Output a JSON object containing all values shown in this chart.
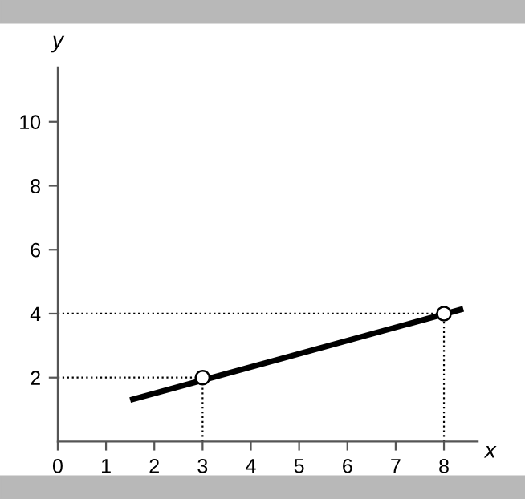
{
  "chart_data": {
    "type": "line",
    "xlabel": "x",
    "ylabel": "y",
    "series": [
      {
        "color": "#000000",
        "x": [
          1.5,
          8.4
        ],
        "values": [
          1.3,
          4.15
        ],
        "marker": "none"
      },
      {
        "type": "scatter",
        "color": "#000000",
        "x": [
          3,
          8
        ],
        "values": [
          2,
          4
        ],
        "marker": "circle"
      }
    ],
    "xlim": [
      0,
      8.7
    ],
    "ylim": [
      0,
      11.7
    ],
    "xticks": [
      0,
      1,
      2,
      3,
      4,
      5,
      6,
      7,
      8
    ],
    "yticks": [
      2,
      4,
      6,
      8,
      10
    ],
    "ref_lines": [
      {
        "axis": "x",
        "value": 3,
        "line_style": "dotted"
      },
      {
        "axis": "x",
        "value": 8,
        "line_style": "dotted"
      },
      {
        "axis": "y",
        "value": 2,
        "line_style": "dotted"
      },
      {
        "axis": "y",
        "value": 4,
        "line_style": "dotted"
      }
    ],
    "grid": false,
    "legend": false
  }
}
